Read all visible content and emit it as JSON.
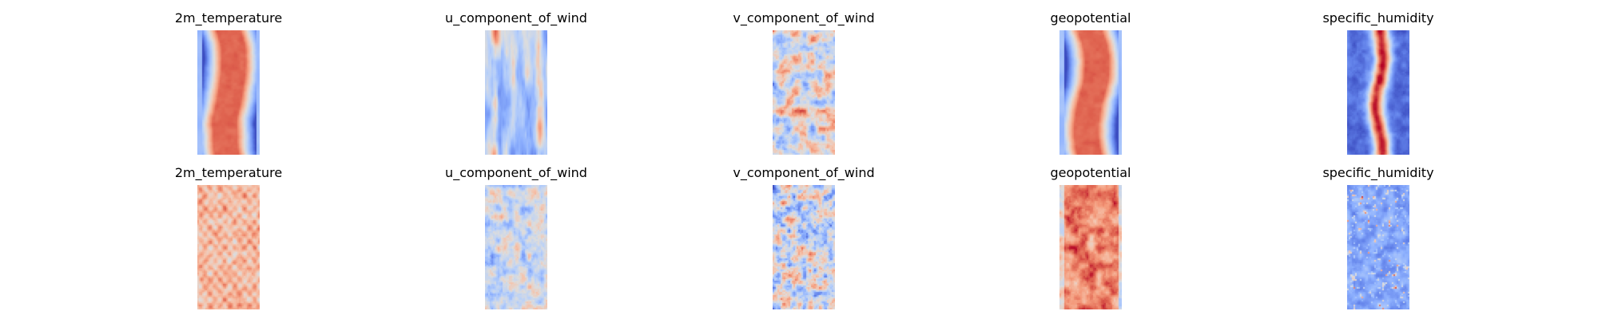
{
  "chart_data": [
    {
      "type": "heatmap",
      "row": 0,
      "col": 0,
      "title": "2m_temperature",
      "colormap": "coolwarm",
      "pattern": "warm-band"
    },
    {
      "type": "heatmap",
      "row": 0,
      "col": 1,
      "title": "u_component_of_wind",
      "colormap": "coolwarm",
      "pattern": "streaky-cool"
    },
    {
      "type": "heatmap",
      "row": 0,
      "col": 2,
      "title": "v_component_of_wind",
      "colormap": "coolwarm",
      "pattern": "mottled-neutral"
    },
    {
      "type": "heatmap",
      "row": 0,
      "col": 3,
      "title": "geopotential",
      "colormap": "coolwarm",
      "pattern": "warm-band"
    },
    {
      "type": "heatmap",
      "row": 0,
      "col": 4,
      "title": "specific_humidity",
      "colormap": "coolwarm",
      "pattern": "narrow-warm-core"
    },
    {
      "type": "heatmap",
      "row": 1,
      "col": 0,
      "title": "2m_temperature",
      "colormap": "coolwarm",
      "pattern": "noisy-warm"
    },
    {
      "type": "heatmap",
      "row": 1,
      "col": 1,
      "title": "u_component_of_wind",
      "colormap": "coolwarm",
      "pattern": "noisy-neutral"
    },
    {
      "type": "heatmap",
      "row": 1,
      "col": 2,
      "title": "v_component_of_wind",
      "colormap": "coolwarm",
      "pattern": "noisy-mottled"
    },
    {
      "type": "heatmap",
      "row": 1,
      "col": 3,
      "title": "geopotential",
      "colormap": "coolwarm",
      "pattern": "noisy-hot"
    },
    {
      "type": "heatmap",
      "row": 1,
      "col": 4,
      "title": "specific_humidity",
      "colormap": "coolwarm",
      "pattern": "cool-speckled"
    }
  ]
}
